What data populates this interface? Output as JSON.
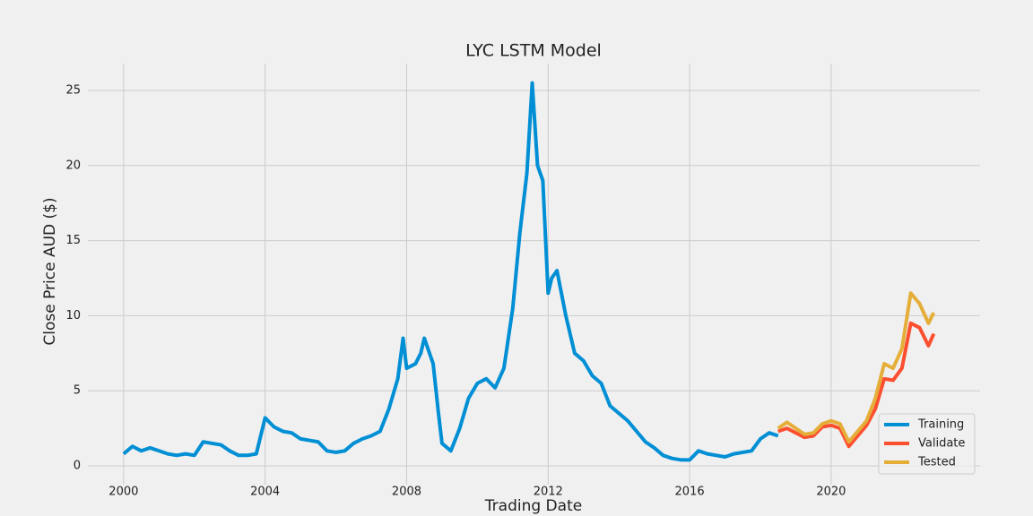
{
  "chart_data": {
    "type": "line",
    "title": "LYC LSTM Model",
    "x_label": "Trading Date",
    "y_label": "Close Price AUD ($)",
    "series": [
      {
        "name": "Training",
        "color": "#008fd5",
        "x": [
          2000.0,
          2000.25,
          2000.5,
          2000.75,
          2001.0,
          2001.25,
          2001.5,
          2001.75,
          2002.0,
          2002.25,
          2002.5,
          2002.75,
          2003.0,
          2003.25,
          2003.5,
          2003.75,
          2004.0,
          2004.25,
          2004.5,
          2004.75,
          2005.0,
          2005.25,
          2005.5,
          2005.75,
          2006.0,
          2006.25,
          2006.5,
          2006.75,
          2007.0,
          2007.25,
          2007.5,
          2007.75,
          2007.9,
          2008.0,
          2008.25,
          2008.4,
          2008.5,
          2008.75,
          2008.9,
          2009.0,
          2009.25,
          2009.5,
          2009.75,
          2010.0,
          2010.25,
          2010.5,
          2010.75,
          2011.0,
          2011.2,
          2011.4,
          2011.55,
          2011.7,
          2011.85,
          2012.0,
          2012.1,
          2012.25,
          2012.5,
          2012.75,
          2013.0,
          2013.25,
          2013.5,
          2013.75,
          2014.0,
          2014.25,
          2014.5,
          2014.75,
          2015.0,
          2015.25,
          2015.5,
          2015.75,
          2016.0,
          2016.25,
          2016.5,
          2016.75,
          2017.0,
          2017.25,
          2017.5,
          2017.75,
          2018.0,
          2018.25,
          2018.5
        ],
        "values": [
          0.8,
          1.3,
          1.0,
          1.2,
          1.0,
          0.8,
          0.7,
          0.8,
          0.7,
          1.6,
          1.5,
          1.4,
          1.0,
          0.7,
          0.7,
          0.8,
          3.2,
          2.6,
          2.3,
          2.2,
          1.8,
          1.7,
          1.6,
          1.0,
          0.9,
          1.0,
          1.5,
          1.8,
          2.0,
          2.3,
          3.8,
          5.8,
          8.5,
          6.5,
          6.8,
          7.5,
          8.5,
          6.8,
          3.5,
          1.5,
          1.0,
          2.5,
          4.5,
          5.5,
          5.8,
          5.2,
          6.5,
          10.5,
          15.5,
          19.5,
          25.5,
          20.0,
          19.0,
          11.5,
          12.5,
          13.0,
          10.0,
          7.5,
          7.0,
          6.0,
          5.5,
          4.0,
          3.5,
          3.0,
          2.3,
          1.6,
          1.2,
          0.7,
          0.5,
          0.4,
          0.4,
          1.0,
          0.8,
          0.7,
          0.6,
          0.8,
          0.9,
          1.0,
          1.8,
          2.2,
          2.0
        ]
      },
      {
        "name": "Validate",
        "color": "#fc4f30",
        "x": [
          2018.5,
          2018.75,
          2019.0,
          2019.25,
          2019.5,
          2019.75,
          2020.0,
          2020.25,
          2020.5,
          2020.75,
          2021.0,
          2021.25,
          2021.5,
          2021.75,
          2022.0,
          2022.25,
          2022.5,
          2022.75,
          2022.9
        ],
        "values": [
          2.3,
          2.5,
          2.2,
          1.9,
          2.0,
          2.6,
          2.7,
          2.5,
          1.3,
          2.0,
          2.7,
          3.8,
          5.8,
          5.7,
          6.5,
          9.5,
          9.2,
          8.0,
          8.8
        ]
      },
      {
        "name": "Tested",
        "color": "#e5ae38",
        "x": [
          2018.5,
          2018.75,
          2019.0,
          2019.25,
          2019.5,
          2019.75,
          2020.0,
          2020.25,
          2020.5,
          2020.75,
          2021.0,
          2021.25,
          2021.5,
          2021.75,
          2022.0,
          2022.25,
          2022.5,
          2022.75,
          2022.9
        ],
        "values": [
          2.5,
          2.9,
          2.5,
          2.1,
          2.2,
          2.8,
          3.0,
          2.8,
          1.6,
          2.3,
          3.0,
          4.5,
          6.8,
          6.5,
          7.8,
          11.5,
          10.8,
          9.5,
          10.2
        ]
      }
    ],
    "xlim": [
      1998.99,
      2024.21
    ],
    "xticks": [
      2000,
      2004,
      2008,
      2012,
      2016,
      2020
    ],
    "ylim": [
      -1.25,
      26.79
    ],
    "yticks": [
      0,
      5,
      10,
      15,
      20,
      25
    ],
    "grid": true,
    "legend": "lower right"
  }
}
